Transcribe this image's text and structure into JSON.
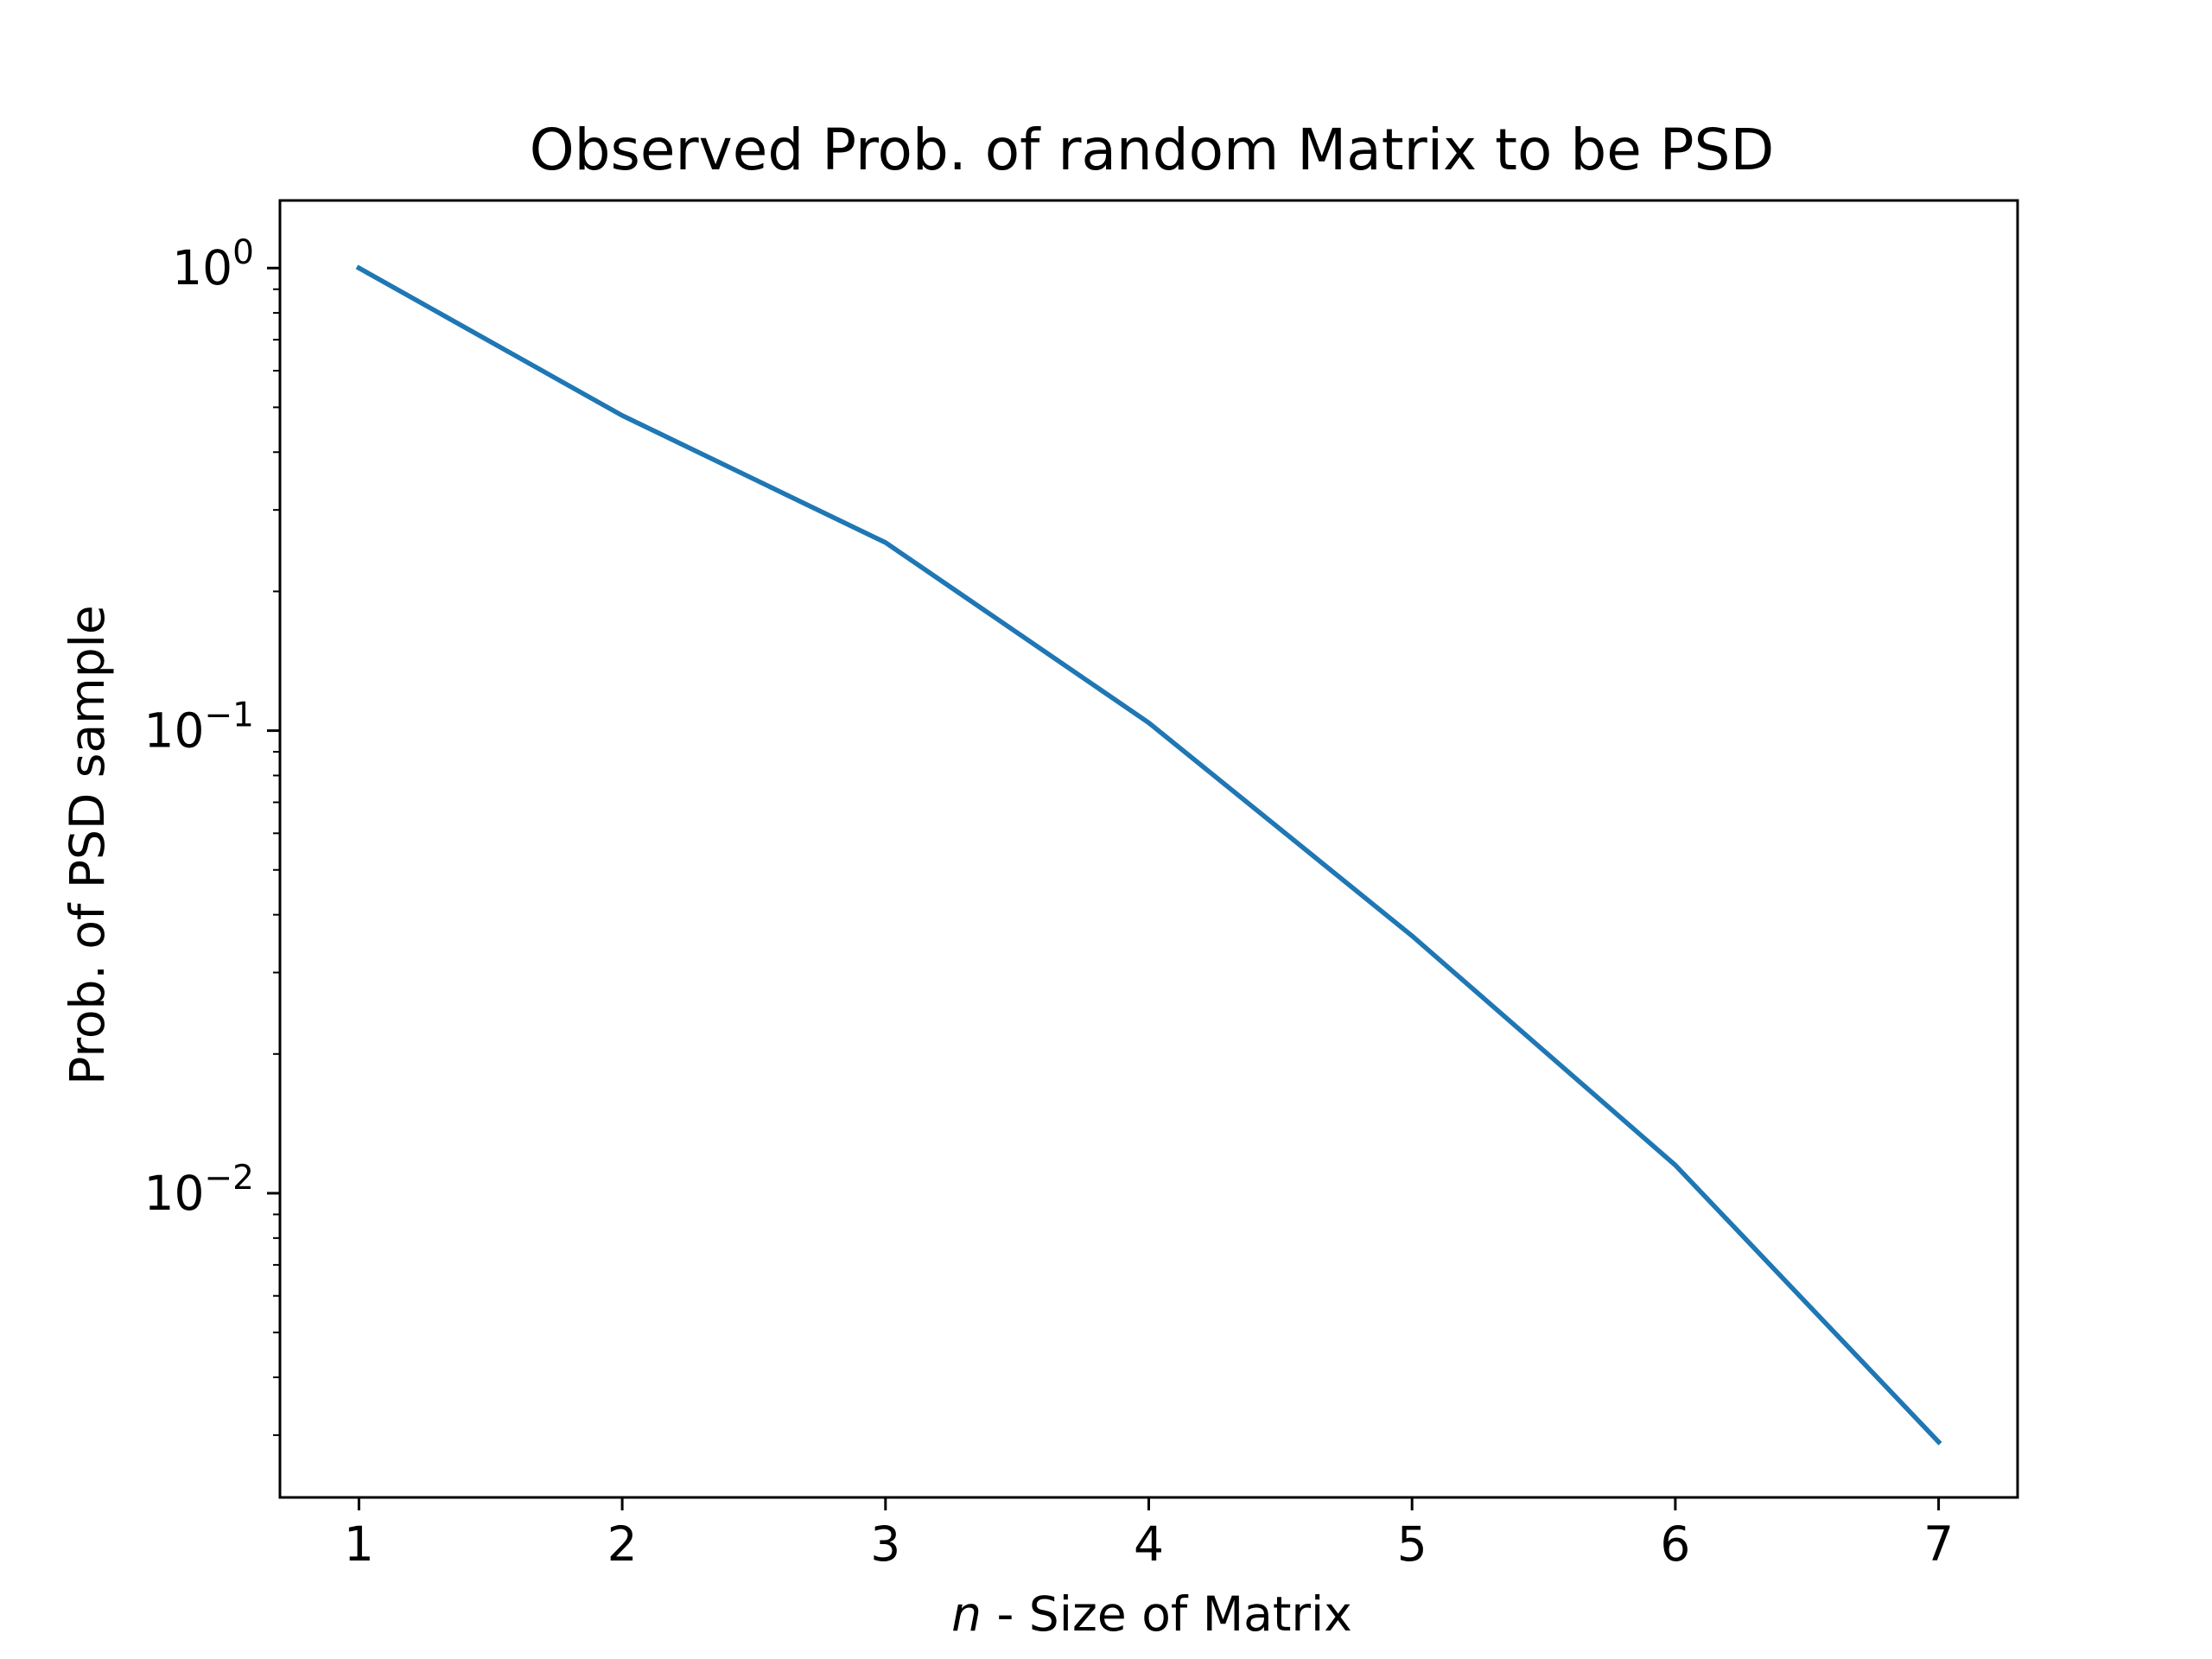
{
  "chart_data": {
    "type": "line",
    "title": "Observed Prob. of random Matrix to be PSD",
    "xlabel_italic": "n",
    "xlabel_rest": " - Size of Matrix",
    "ylabel": "Prob. of PSD sample",
    "y_scale": "log",
    "grid": false,
    "legend": "none",
    "xlim": [
      0.7,
      7.3
    ],
    "ylim": [
      0.0022,
      1.4
    ],
    "x_ticks": [
      {
        "value": 1,
        "label": "1"
      },
      {
        "value": 2,
        "label": "2"
      },
      {
        "value": 3,
        "label": "3"
      },
      {
        "value": 4,
        "label": "4"
      },
      {
        "value": 5,
        "label": "5"
      },
      {
        "value": 6,
        "label": "6"
      },
      {
        "value": 7,
        "label": "7"
      }
    ],
    "y_ticks": [
      {
        "value": 1,
        "base": "10",
        "exponent": "0"
      },
      {
        "value": 0.1,
        "base": "10",
        "exponent": "−1"
      },
      {
        "value": 0.01,
        "base": "10",
        "exponent": "−2"
      }
    ],
    "series": [
      {
        "color": "#1f77b4",
        "x": [
          1,
          2,
          3,
          4,
          5,
          6,
          7
        ],
        "y": [
          1.0,
          0.48,
          0.255,
          0.104,
          0.036,
          0.0115,
          0.0029
        ]
      }
    ]
  }
}
